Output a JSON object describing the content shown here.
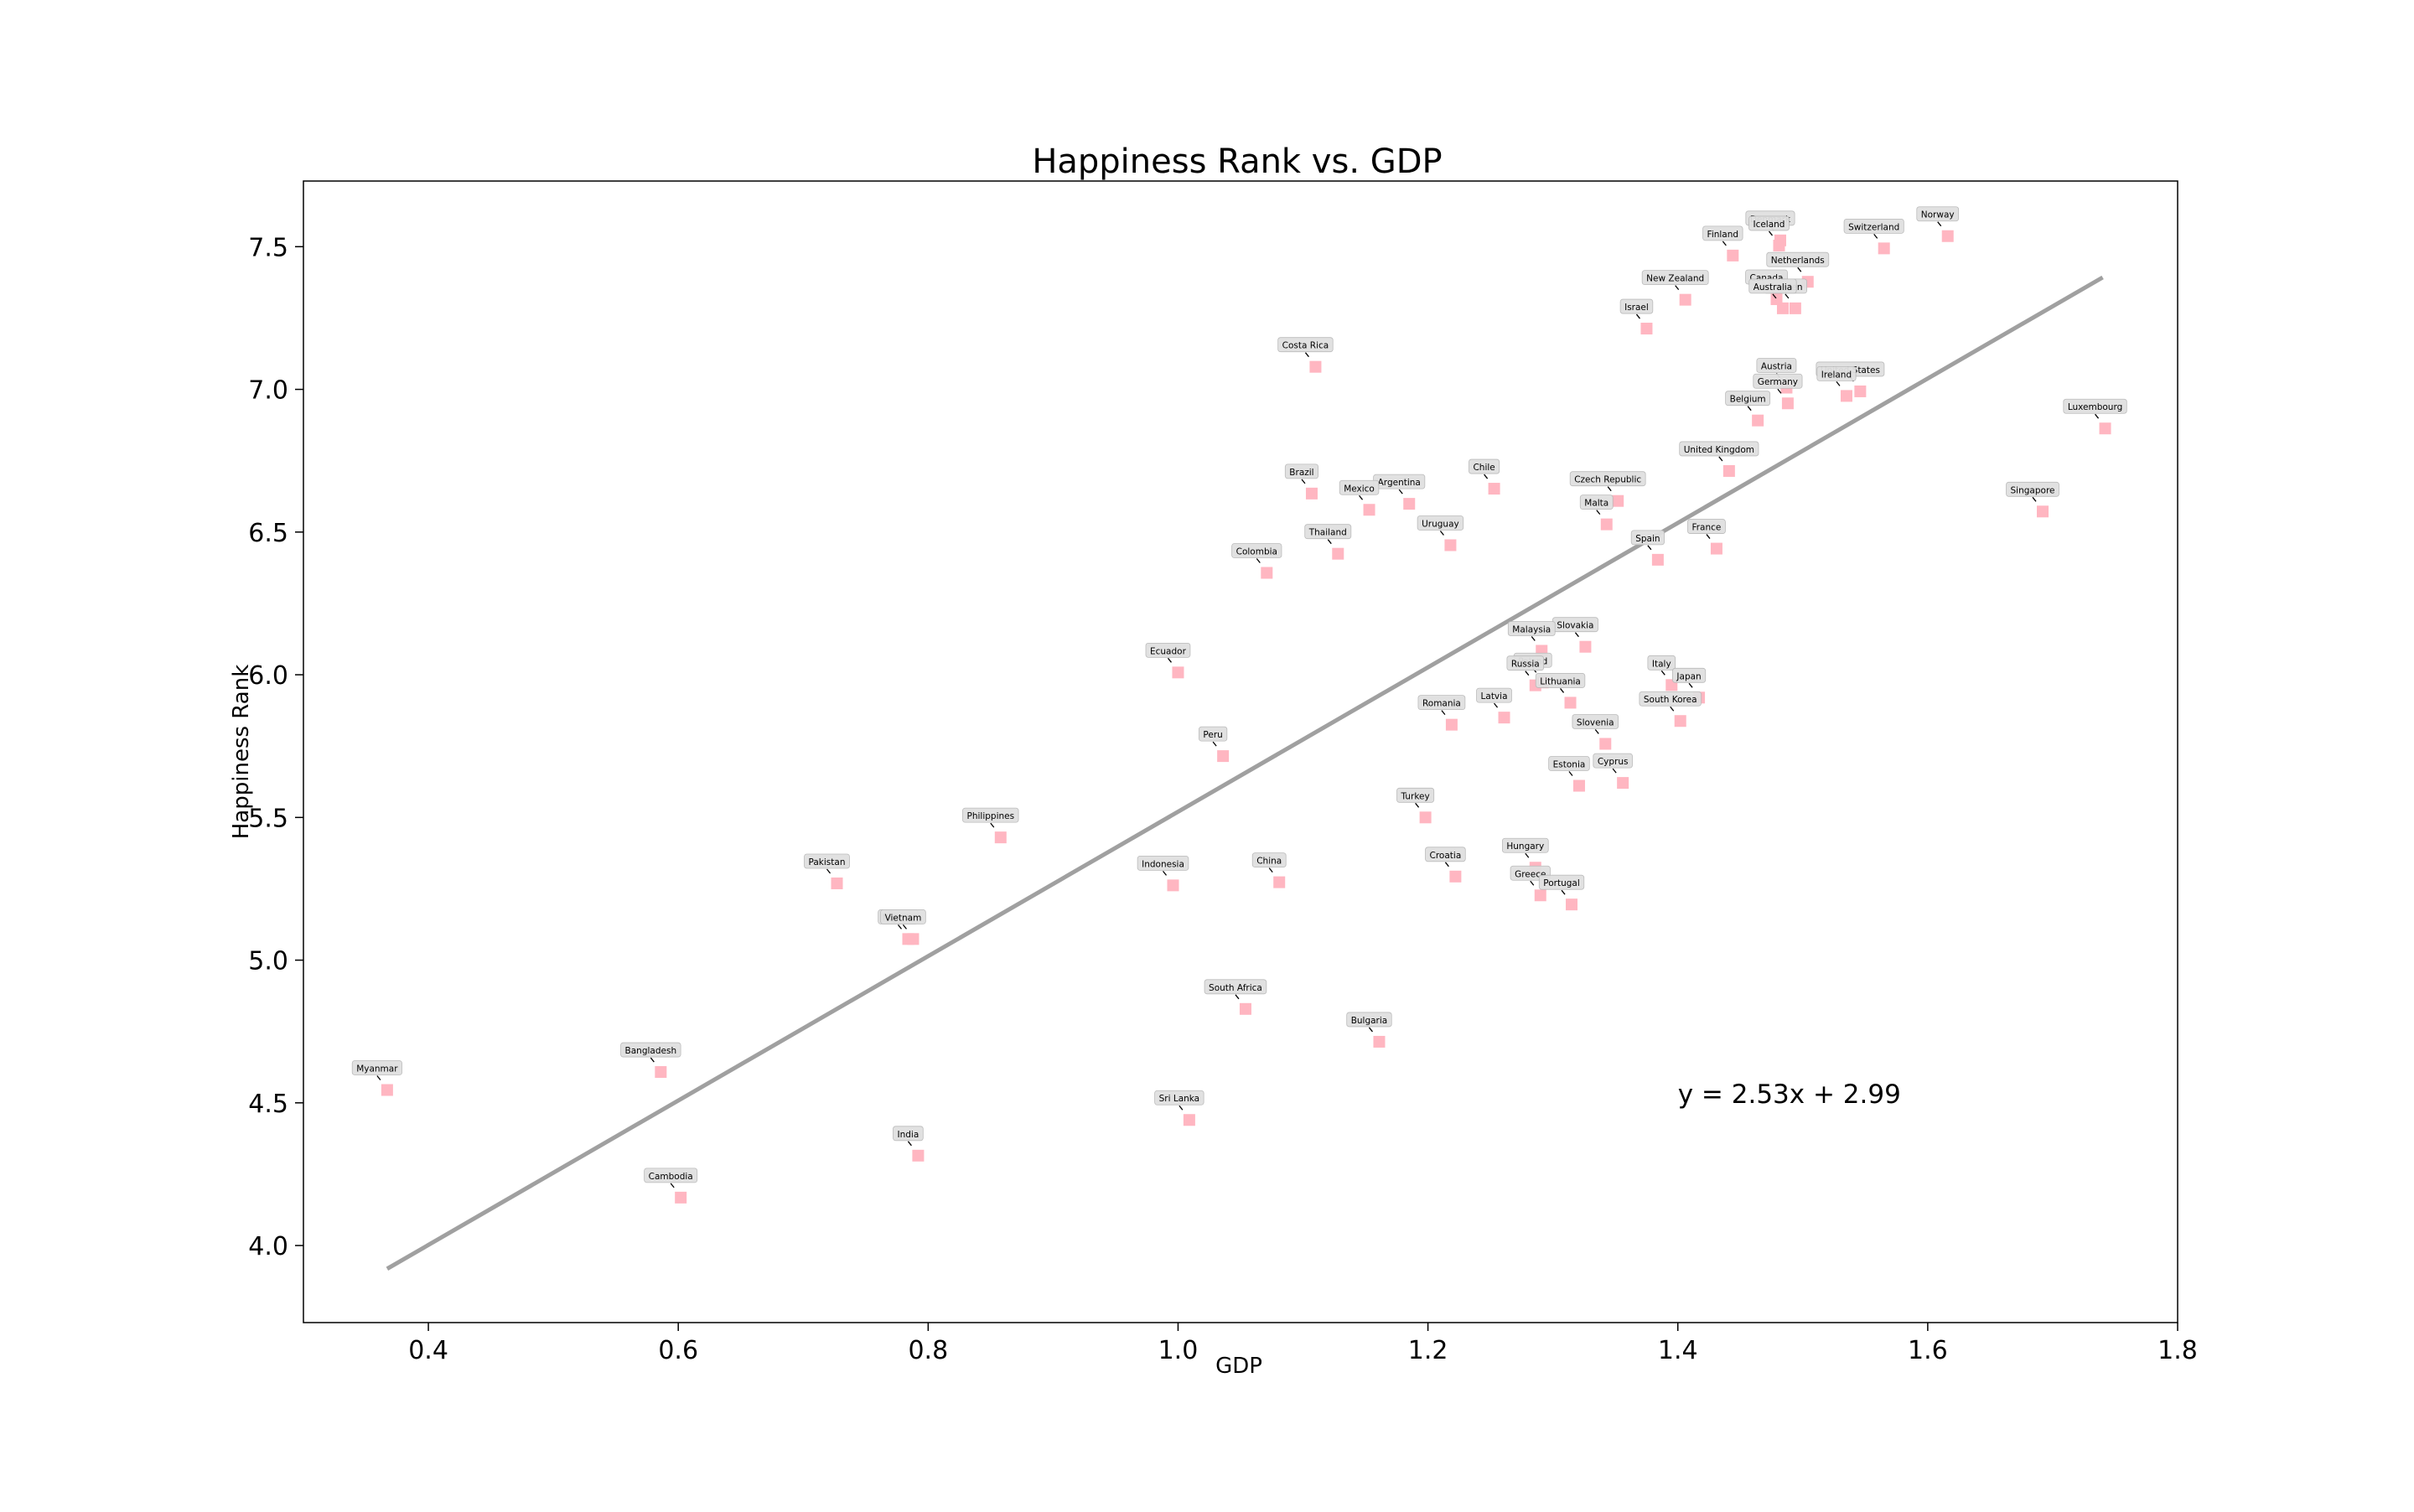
{
  "chart_data": {
    "type": "scatter",
    "title": "Happiness Rank vs. GDP",
    "xlabel": "GDP",
    "ylabel": "Happiness Rank",
    "xlim": [
      0.3,
      1.8
    ],
    "ylim": [
      3.73,
      7.73
    ],
    "xticks": [
      0.4,
      0.6,
      0.8,
      1.0,
      1.2,
      1.4,
      1.6,
      1.8
    ],
    "yticks": [
      4.0,
      4.5,
      5.0,
      5.5,
      6.0,
      6.5,
      7.0,
      7.5
    ],
    "xtick_labels": [
      "0.4",
      "0.6",
      "0.8",
      "1.0",
      "1.2",
      "1.4",
      "1.6",
      "1.8"
    ],
    "ytick_labels": [
      "4.0",
      "4.5",
      "5.0",
      "5.5",
      "6.0",
      "6.5",
      "7.0",
      "7.5"
    ],
    "grid": false,
    "marker_color": "#ffb6c1",
    "line_color": "#a0a0a0",
    "label_box_color": "#e0e0e0",
    "regression": {
      "slope": 2.53,
      "intercept": 2.99,
      "x_range": [
        0.367,
        1.74
      ],
      "equation_text": "y = 2.53x + 2.99",
      "equation_position": [
        1.4,
        4.5
      ]
    },
    "points": [
      {
        "name": "Norway",
        "x": 1.616,
        "y": 7.537
      },
      {
        "name": "Denmark",
        "x": 1.482,
        "y": 7.522
      },
      {
        "name": "Iceland",
        "x": 1.481,
        "y": 7.504
      },
      {
        "name": "Switzerland",
        "x": 1.565,
        "y": 7.494
      },
      {
        "name": "Finland",
        "x": 1.444,
        "y": 7.469
      },
      {
        "name": "Netherlands",
        "x": 1.504,
        "y": 7.377
      },
      {
        "name": "Canada",
        "x": 1.479,
        "y": 7.316
      },
      {
        "name": "New Zealand",
        "x": 1.406,
        "y": 7.314
      },
      {
        "name": "Sweden",
        "x": 1.494,
        "y": 7.284
      },
      {
        "name": "Australia",
        "x": 1.484,
        "y": 7.284
      },
      {
        "name": "Israel",
        "x": 1.375,
        "y": 7.213
      },
      {
        "name": "Costa Rica",
        "x": 1.11,
        "y": 7.079
      },
      {
        "name": "Austria",
        "x": 1.487,
        "y": 7.006
      },
      {
        "name": "United States",
        "x": 1.546,
        "y": 6.993
      },
      {
        "name": "Ireland",
        "x": 1.535,
        "y": 6.977
      },
      {
        "name": "Germany",
        "x": 1.488,
        "y": 6.951
      },
      {
        "name": "Belgium",
        "x": 1.464,
        "y": 6.891
      },
      {
        "name": "Luxembourg",
        "x": 1.742,
        "y": 6.863
      },
      {
        "name": "United Kingdom",
        "x": 1.441,
        "y": 6.714
      },
      {
        "name": "Chile",
        "x": 1.253,
        "y": 6.652
      },
      {
        "name": "Brazil",
        "x": 1.107,
        "y": 6.635
      },
      {
        "name": "Czech Republic",
        "x": 1.352,
        "y": 6.609
      },
      {
        "name": "Argentina",
        "x": 1.185,
        "y": 6.599
      },
      {
        "name": "Mexico",
        "x": 1.153,
        "y": 6.578
      },
      {
        "name": "Singapore",
        "x": 1.692,
        "y": 6.572
      },
      {
        "name": "Malta",
        "x": 1.343,
        "y": 6.527
      },
      {
        "name": "Uruguay",
        "x": 1.218,
        "y": 6.454
      },
      {
        "name": "France",
        "x": 1.431,
        "y": 6.442
      },
      {
        "name": "Thailand",
        "x": 1.128,
        "y": 6.424
      },
      {
        "name": "Spain",
        "x": 1.384,
        "y": 6.403
      },
      {
        "name": "Colombia",
        "x": 1.071,
        "y": 6.357
      },
      {
        "name": "Slovakia",
        "x": 1.326,
        "y": 6.098
      },
      {
        "name": "Malaysia",
        "x": 1.291,
        "y": 6.084
      },
      {
        "name": "Ecuador",
        "x": 1.0,
        "y": 6.008
      },
      {
        "name": "Poland",
        "x": 1.292,
        "y": 5.973
      },
      {
        "name": "Italy",
        "x": 1.395,
        "y": 5.964
      },
      {
        "name": "Russia",
        "x": 1.286,
        "y": 5.963
      },
      {
        "name": "Japan",
        "x": 1.417,
        "y": 5.92
      },
      {
        "name": "Lithuania",
        "x": 1.314,
        "y": 5.902
      },
      {
        "name": "Latvia",
        "x": 1.261,
        "y": 5.85
      },
      {
        "name": "South Korea",
        "x": 1.402,
        "y": 5.838
      },
      {
        "name": "Romania",
        "x": 1.219,
        "y": 5.825
      },
      {
        "name": "Slovenia",
        "x": 1.342,
        "y": 5.758
      },
      {
        "name": "Peru",
        "x": 1.036,
        "y": 5.715
      },
      {
        "name": "Cyprus",
        "x": 1.356,
        "y": 5.621
      },
      {
        "name": "Estonia",
        "x": 1.321,
        "y": 5.611
      },
      {
        "name": "Turkey",
        "x": 1.198,
        "y": 5.5
      },
      {
        "name": "Philippines",
        "x": 0.858,
        "y": 5.43
      },
      {
        "name": "Hungary",
        "x": 1.286,
        "y": 5.324
      },
      {
        "name": "Croatia",
        "x": 1.222,
        "y": 5.293
      },
      {
        "name": "China",
        "x": 1.081,
        "y": 5.273
      },
      {
        "name": "Pakistan",
        "x": 0.727,
        "y": 5.269
      },
      {
        "name": "Indonesia",
        "x": 0.996,
        "y": 5.262
      },
      {
        "name": "Greece",
        "x": 1.29,
        "y": 5.227
      },
      {
        "name": "Portugal",
        "x": 1.315,
        "y": 5.195
      },
      {
        "name": "Nigeria",
        "x": 0.784,
        "y": 5.074
      },
      {
        "name": "Vietnam",
        "x": 0.788,
        "y": 5.074
      },
      {
        "name": "South Africa",
        "x": 1.054,
        "y": 4.829
      },
      {
        "name": "Bulgaria",
        "x": 1.161,
        "y": 4.714
      },
      {
        "name": "Myanmar",
        "x": 0.367,
        "y": 4.545
      },
      {
        "name": "Bangladesh",
        "x": 0.586,
        "y": 4.608
      },
      {
        "name": "Sri Lanka",
        "x": 1.009,
        "y": 4.44
      },
      {
        "name": "India",
        "x": 0.792,
        "y": 4.315
      },
      {
        "name": "Cambodia",
        "x": 0.602,
        "y": 4.168
      }
    ]
  }
}
